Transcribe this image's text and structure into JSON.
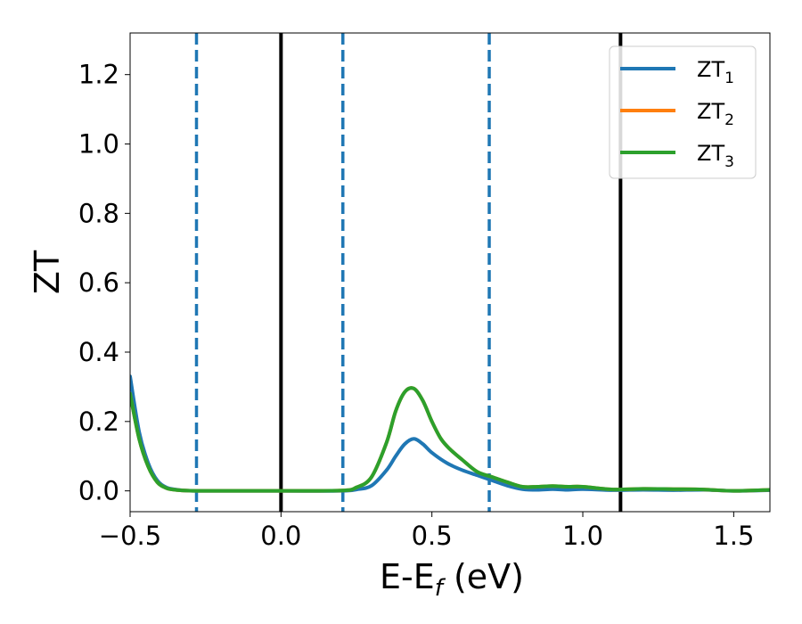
{
  "chart_data": {
    "type": "line",
    "xlabel": "E-E",
    "xlabel_sub": "f",
    "xlabel_unit": " (eV)",
    "ylabel": "ZT",
    "xlim": [
      -0.5,
      1.62
    ],
    "ylim": [
      -0.06,
      1.32
    ],
    "xticks": [
      -0.5,
      0.0,
      0.5,
      1.0,
      1.5
    ],
    "xtick_labels": [
      "−0.5",
      "0.0",
      "0.5",
      "1.0",
      "1.5"
    ],
    "yticks": [
      0.0,
      0.2,
      0.4,
      0.6,
      0.8,
      1.0,
      1.2
    ],
    "ytick_labels": [
      "0.0",
      "0.2",
      "0.4",
      "0.6",
      "0.8",
      "1.0",
      "1.2"
    ],
    "grid": false,
    "legend_position": "top-right",
    "vlines": [
      {
        "x": -0.28,
        "style": "dashed",
        "color": "#1f77b4"
      },
      {
        "x": 0.0,
        "style": "solid",
        "color": "#000000"
      },
      {
        "x": 0.205,
        "style": "dashed",
        "color": "#1f77b4"
      },
      {
        "x": 0.69,
        "style": "dashed",
        "color": "#1f77b4"
      },
      {
        "x": 1.125,
        "style": "solid",
        "color": "#000000"
      }
    ],
    "series": [
      {
        "name": "ZT",
        "name_sub": "1",
        "color": "#1f77b4",
        "x": [
          -0.5,
          -0.47,
          -0.44,
          -0.41,
          -0.38,
          -0.35,
          -0.32,
          -0.28,
          -0.2,
          0.0,
          0.2,
          0.25,
          0.3,
          0.35,
          0.38,
          0.41,
          0.44,
          0.47,
          0.5,
          0.55,
          0.6,
          0.65,
          0.7,
          0.75,
          0.8,
          0.85,
          0.9,
          0.95,
          1.0,
          1.1,
          1.2,
          1.3,
          1.4,
          1.5,
          1.62
        ],
        "y": [
          0.33,
          0.17,
          0.08,
          0.03,
          0.01,
          0.004,
          0.001,
          0.0,
          0.0,
          0.0,
          0.0,
          0.004,
          0.015,
          0.06,
          0.1,
          0.135,
          0.15,
          0.135,
          0.11,
          0.08,
          0.06,
          0.045,
          0.03,
          0.015,
          0.005,
          0.003,
          0.005,
          0.003,
          0.005,
          0.002,
          0.003,
          0.002,
          0.003,
          0.0,
          0.002
        ]
      },
      {
        "name": "ZT",
        "name_sub": "2",
        "color": "#ff7f0e",
        "x": [
          -0.5,
          -0.47,
          -0.44,
          -0.41,
          -0.38,
          -0.35,
          -0.32,
          -0.28,
          -0.2,
          0.0,
          0.2,
          0.25,
          0.3,
          0.35,
          0.38,
          0.41,
          0.44,
          0.47,
          0.5,
          0.53,
          0.56,
          0.6,
          0.65,
          0.7,
          0.75,
          0.8,
          0.85,
          0.9,
          0.95,
          1.0,
          1.1,
          1.2,
          1.3,
          1.4,
          1.5,
          1.62
        ],
        "y": [
          0.28,
          0.15,
          0.07,
          0.025,
          0.008,
          0.003,
          0.001,
          0.0,
          0.0,
          0.0,
          0.001,
          0.01,
          0.04,
          0.14,
          0.23,
          0.285,
          0.295,
          0.26,
          0.2,
          0.15,
          0.12,
          0.09,
          0.055,
          0.04,
          0.025,
          0.012,
          0.012,
          0.014,
          0.012,
          0.012,
          0.004,
          0.006,
          0.005,
          0.004,
          0.0,
          0.003
        ]
      },
      {
        "name": "ZT",
        "name_sub": "3",
        "color": "#2ca02c",
        "x": [
          -0.5,
          -0.47,
          -0.44,
          -0.41,
          -0.38,
          -0.35,
          -0.32,
          -0.28,
          -0.2,
          0.0,
          0.2,
          0.25,
          0.3,
          0.35,
          0.38,
          0.41,
          0.44,
          0.47,
          0.5,
          0.53,
          0.56,
          0.6,
          0.65,
          0.7,
          0.75,
          0.8,
          0.85,
          0.9,
          0.95,
          1.0,
          1.1,
          1.2,
          1.3,
          1.4,
          1.5,
          1.62
        ],
        "y": [
          0.28,
          0.15,
          0.07,
          0.025,
          0.008,
          0.003,
          0.001,
          0.0,
          0.0,
          0.0,
          0.001,
          0.01,
          0.04,
          0.14,
          0.23,
          0.285,
          0.295,
          0.26,
          0.2,
          0.15,
          0.12,
          0.09,
          0.055,
          0.04,
          0.025,
          0.012,
          0.012,
          0.014,
          0.012,
          0.012,
          0.004,
          0.006,
          0.005,
          0.004,
          0.0,
          0.003
        ]
      }
    ]
  }
}
